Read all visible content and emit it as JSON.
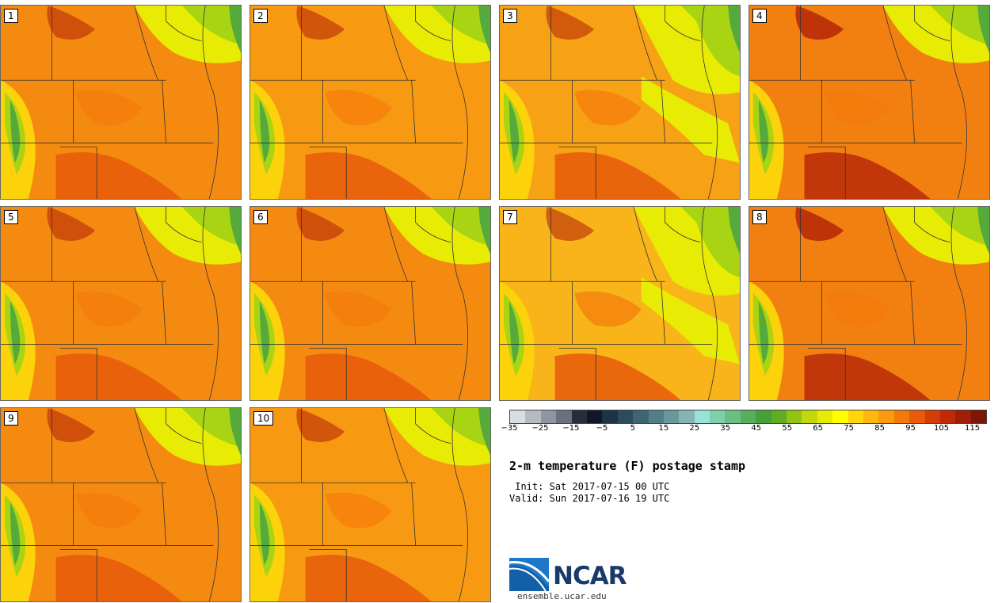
{
  "panels": [
    {
      "label": "1",
      "base": "#f58a10"
    },
    {
      "label": "2",
      "base": "#f79a12"
    },
    {
      "label": "3",
      "base": "#f7a215"
    },
    {
      "label": "4",
      "base": "#f28010"
    },
    {
      "label": "5",
      "base": "#f58a10"
    },
    {
      "label": "6",
      "base": "#f58a10"
    },
    {
      "label": "7",
      "base": "#f8b418"
    },
    {
      "label": "8",
      "base": "#f28010"
    },
    {
      "label": "9",
      "base": "#f58a10"
    },
    {
      "label": "10",
      "base": "#f79a12"
    }
  ],
  "colorbar": {
    "colors": [
      "#d8dde3",
      "#b4bac2",
      "#8f96a0",
      "#6a717e",
      "#262d3d",
      "#101828",
      "#1e3446",
      "#2c4c5e",
      "#3e6572",
      "#527e86",
      "#69979c",
      "#86b4b4",
      "#98e2d6",
      "#7ed0a8",
      "#6ac082",
      "#58ae5c",
      "#46a036",
      "#62ac24",
      "#92c414",
      "#c2d80c",
      "#e8ec04",
      "#ffff00",
      "#ffd60a",
      "#ffb80e",
      "#fc9a10",
      "#f57a0c",
      "#ea5a0a",
      "#d63c08",
      "#be2a08",
      "#a01e08",
      "#7e1608"
    ],
    "ticks": [
      "−35",
      "−25",
      "−15",
      "−5",
      "5",
      "15",
      "25",
      "35",
      "45",
      "55",
      "65",
      "75",
      "85",
      "95",
      "105",
      "115"
    ]
  },
  "title": "2-m temperature (F) postage stamp",
  "init_label": " Init:",
  "init_time": "Sat 2017-07-15 00 UTC",
  "valid_label": "Valid:",
  "valid_time": "Sun 2017-07-16 19 UTC",
  "logo": {
    "wordmark": "NCAR",
    "url": "ensemble.ucar.edu"
  },
  "theme": {
    "cold": "#56aa3c",
    "cool": "#a8d414",
    "mild": "#e8ec04",
    "warm": "#fcd20a",
    "hot": "#f57a0c",
    "hotter": "#e65a0a",
    "hottest": "#b82a08",
    "line": "#333333"
  }
}
